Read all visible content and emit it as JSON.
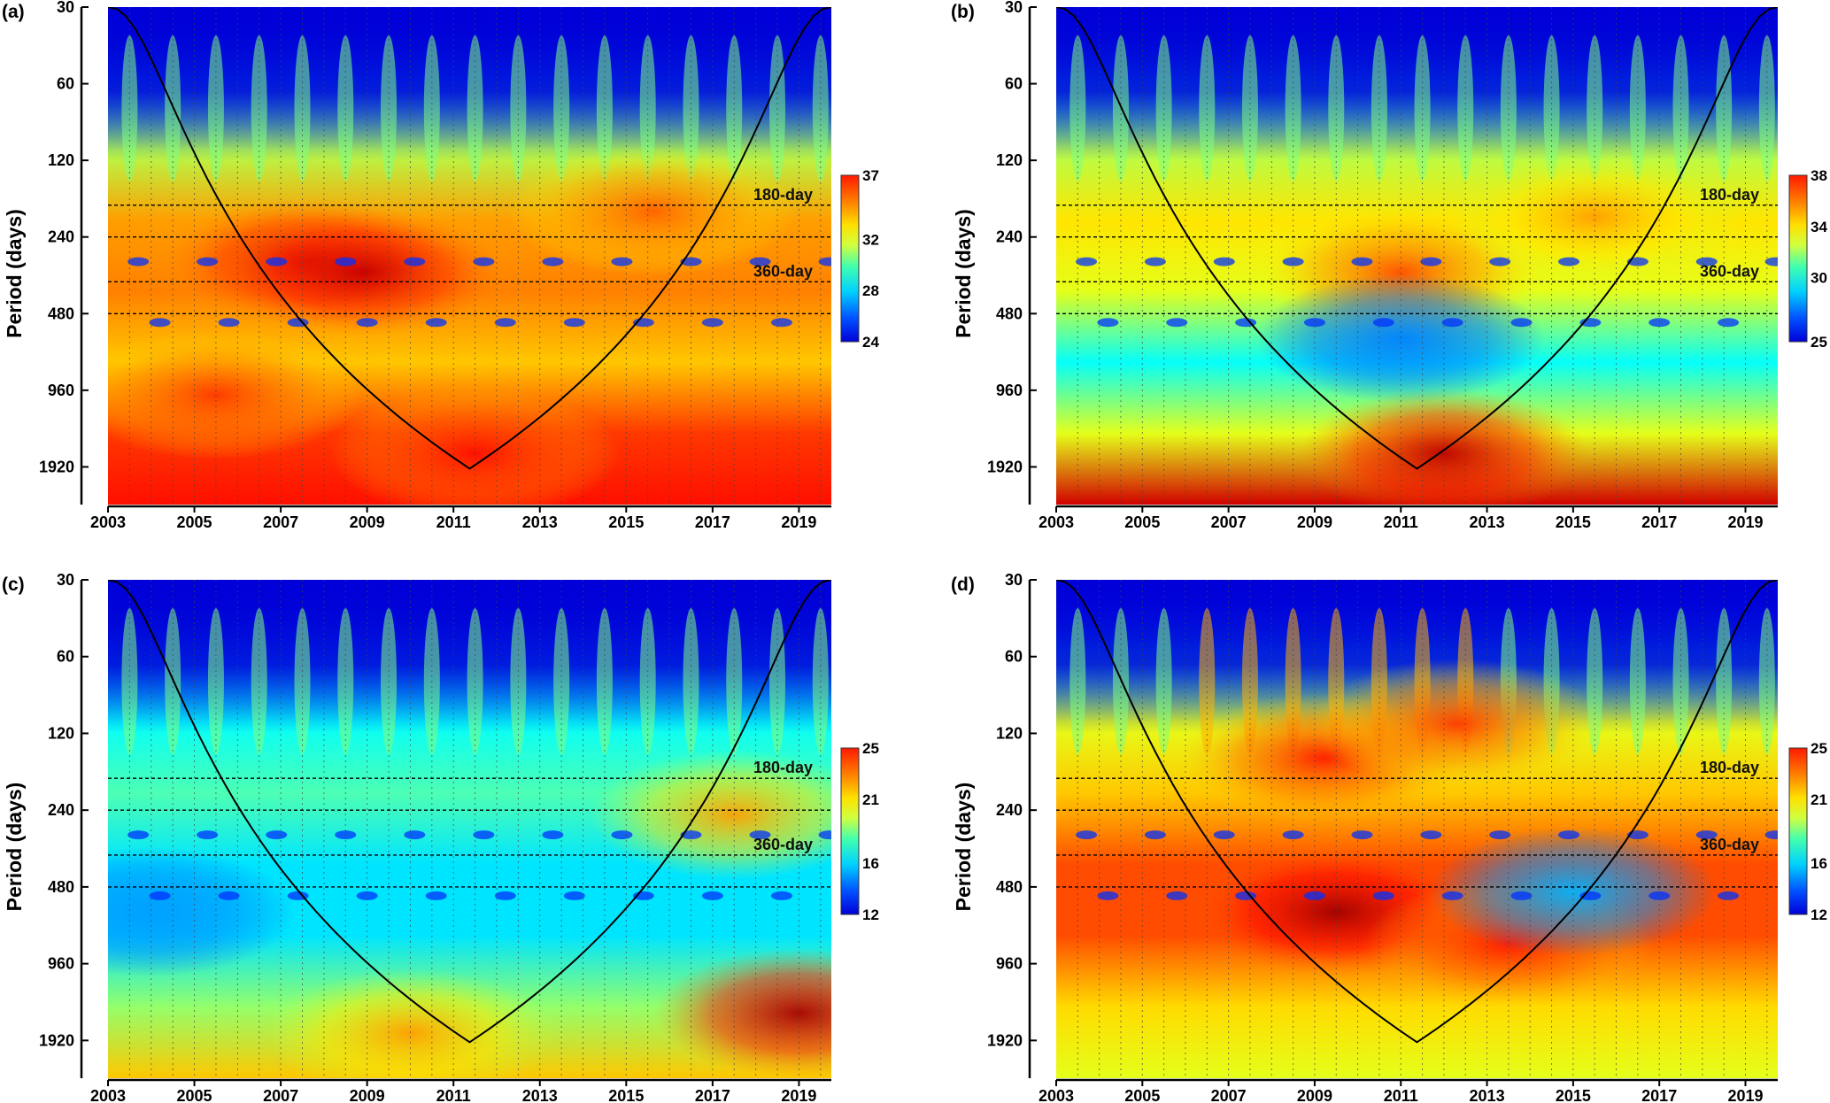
{
  "chart_data": [
    {
      "panel": "(a)",
      "type": "heatmap",
      "ylabel": "Period (days)",
      "y_ticks": [
        30,
        60,
        120,
        240,
        480,
        960,
        1920
      ],
      "y_scale": "log2",
      "x_ticks": [
        "2003",
        "2005",
        "2007",
        "2009",
        "2011",
        "2013",
        "2015",
        "2017",
        "2019"
      ],
      "xlim": [
        2003,
        2019.75
      ],
      "ylim": [
        30,
        2700
      ],
      "reference_lines": [
        {
          "period": 180,
          "label": "180-day"
        },
        {
          "period": 240,
          "label": ""
        },
        {
          "period": 360,
          "label": "360-day"
        },
        {
          "period": 480,
          "label": ""
        }
      ],
      "colorbar": {
        "ticks": [
          24,
          28,
          32,
          37
        ],
        "range": [
          24,
          37
        ]
      },
      "cone_of_influence": true,
      "grid": "vertical dotted lines at half-year intervals",
      "features": [
        {
          "t": 2007.6,
          "period": 300,
          "level": 0.92
        },
        {
          "t": 2008.9,
          "period": 330,
          "level": 0.93
        },
        {
          "t": 2015.6,
          "period": 190,
          "level": 0.78
        },
        {
          "t": 2011.5,
          "period": 1700,
          "level": 0.86
        },
        {
          "t": 2005.5,
          "period": 1000,
          "level": 0.82
        }
      ]
    },
    {
      "panel": "(b)",
      "type": "heatmap",
      "ylabel": "Period (days)",
      "y_ticks": [
        30,
        60,
        120,
        240,
        480,
        960,
        1920
      ],
      "y_scale": "log2",
      "x_ticks": [
        "2003",
        "2005",
        "2007",
        "2009",
        "2011",
        "2013",
        "2015",
        "2017",
        "2019"
      ],
      "xlim": [
        2003,
        2019.75
      ],
      "ylim": [
        30,
        2700
      ],
      "reference_lines": [
        {
          "period": 180,
          "label": "180-day"
        },
        {
          "period": 240,
          "label": ""
        },
        {
          "period": 360,
          "label": "360-day"
        },
        {
          "period": 480,
          "label": ""
        }
      ],
      "colorbar": {
        "ticks": [
          25,
          30,
          34,
          38
        ],
        "range": [
          25,
          38
        ]
      },
      "cone_of_influence": true,
      "grid": "vertical dotted lines at half-year intervals",
      "features": [
        {
          "t": 2011.0,
          "period": 330,
          "level": 0.8
        },
        {
          "t": 2015.5,
          "period": 200,
          "level": 0.72
        },
        {
          "t": 2012.0,
          "period": 1700,
          "level": 0.94
        },
        {
          "t": 2011.0,
          "period": 600,
          "level": 0.25
        }
      ]
    },
    {
      "panel": "(c)",
      "type": "heatmap",
      "ylabel": "Period (days)",
      "y_ticks": [
        30,
        60,
        120,
        240,
        480,
        960,
        1920
      ],
      "y_scale": "log2",
      "x_ticks": [
        "2003",
        "2005",
        "2007",
        "2009",
        "2011",
        "2013",
        "2015",
        "2017",
        "2019"
      ],
      "xlim": [
        2003,
        2019.75
      ],
      "ylim": [
        30,
        2700
      ],
      "reference_lines": [
        {
          "period": 180,
          "label": "180-day"
        },
        {
          "period": 240,
          "label": ""
        },
        {
          "period": 360,
          "label": "360-day"
        },
        {
          "period": 480,
          "label": ""
        }
      ],
      "colorbar": {
        "ticks": [
          12,
          16,
          21,
          25
        ],
        "range": [
          12,
          25
        ]
      },
      "cone_of_influence": true,
      "grid": "vertical dotted lines at half-year intervals",
      "features": [
        {
          "t": 2017.5,
          "period": 250,
          "level": 0.72
        },
        {
          "t": 2019.0,
          "period": 1500,
          "level": 0.96
        },
        {
          "t": 2010.0,
          "period": 1800,
          "level": 0.72
        },
        {
          "t": 2004.0,
          "period": 600,
          "level": 0.28
        }
      ]
    },
    {
      "panel": "(d)",
      "type": "heatmap",
      "ylabel": "Period (days)",
      "y_ticks": [
        30,
        60,
        120,
        240,
        480,
        960,
        1920
      ],
      "y_scale": "log2",
      "x_ticks": [
        "2003",
        "2005",
        "2007",
        "2009",
        "2011",
        "2013",
        "2015",
        "2017",
        "2019"
      ],
      "xlim": [
        2003,
        2019.75
      ],
      "ylim": [
        30,
        2700
      ],
      "reference_lines": [
        {
          "period": 180,
          "label": "180-day"
        },
        {
          "period": 240,
          "label": ""
        },
        {
          "period": 360,
          "label": "360-day"
        },
        {
          "period": 480,
          "label": ""
        }
      ],
      "colorbar": {
        "ticks": [
          12,
          16,
          21,
          25
        ],
        "range": [
          12,
          25
        ]
      },
      "cone_of_influence": true,
      "grid": "vertical dotted lines at half-year intervals",
      "features": [
        {
          "t": 2009.5,
          "period": 600,
          "level": 0.97
        },
        {
          "t": 2009.2,
          "period": 150,
          "level": 0.85
        },
        {
          "t": 2012.3,
          "period": 110,
          "level": 0.82
        },
        {
          "t": 2013.5,
          "period": 800,
          "level": 0.85
        },
        {
          "t": 2015.0,
          "period": 500,
          "level": 0.3
        }
      ]
    }
  ]
}
